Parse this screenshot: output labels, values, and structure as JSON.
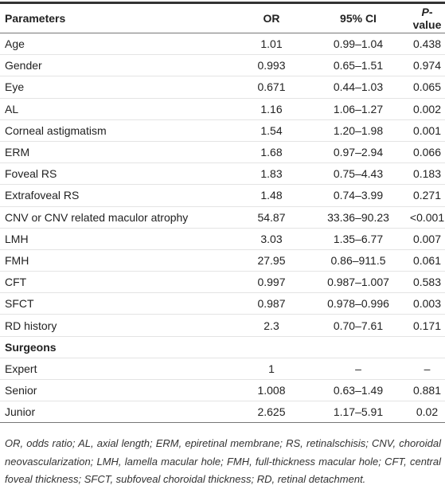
{
  "table": {
    "header": [
      "Parameters",
      "OR",
      "95% CI",
      {
        "italic": "P",
        "rest": "-value"
      }
    ],
    "rows": [
      [
        "Age",
        "1.01",
        "0.99–1.04",
        "0.438"
      ],
      [
        "Gender",
        "0.993",
        "0.65–1.51",
        "0.974"
      ],
      [
        "Eye",
        "0.671",
        "0.44–1.03",
        "0.065"
      ],
      [
        "AL",
        "1.16",
        "1.06–1.27",
        "0.002"
      ],
      [
        "Corneal astigmatism",
        "1.54",
        "1.20–1.98",
        "0.001"
      ],
      [
        "ERM",
        "1.68",
        "0.97–2.94",
        "0.066"
      ],
      [
        "Foveal RS",
        "1.83",
        "0.75–4.43",
        "0.183"
      ],
      [
        "Extrafoveal RS",
        "1.48",
        "0.74–3.99",
        "0.271"
      ],
      [
        "CNV or CNV related maculor atrophy",
        "54.87",
        "33.36–90.23",
        "<0.001"
      ],
      [
        "LMH",
        "3.03",
        "1.35–6.77",
        "0.007"
      ],
      [
        "FMH",
        "27.95",
        "0.86–911.5",
        "0.061"
      ],
      [
        "CFT",
        "0.997",
        "0.987–1.007",
        "0.583"
      ],
      [
        "SFCT",
        "0.987",
        "0.978–0.996",
        "0.003"
      ],
      [
        "RD history",
        "2.3",
        "0.70–7.61",
        "0.171"
      ],
      [
        "Surgeons"
      ],
      [
        "Expert",
        "1",
        "–",
        "–"
      ],
      [
        "Senior",
        "1.008",
        "0.63–1.49",
        "0.881"
      ],
      [
        "Junior",
        "2.625",
        "1.17–5.91",
        "0.02"
      ]
    ],
    "footnote": "OR, odds ratio; AL, axial length; ERM, epiretinal membrane; RS, retinalschisis; CNV, choroidal neovascularization; LMH, lamella macular hole; FMH, full-thickness macular hole; CFT, central foveal thickness; SFCT, subfoveal choroidal thickness; RD, retinal detachment."
  }
}
